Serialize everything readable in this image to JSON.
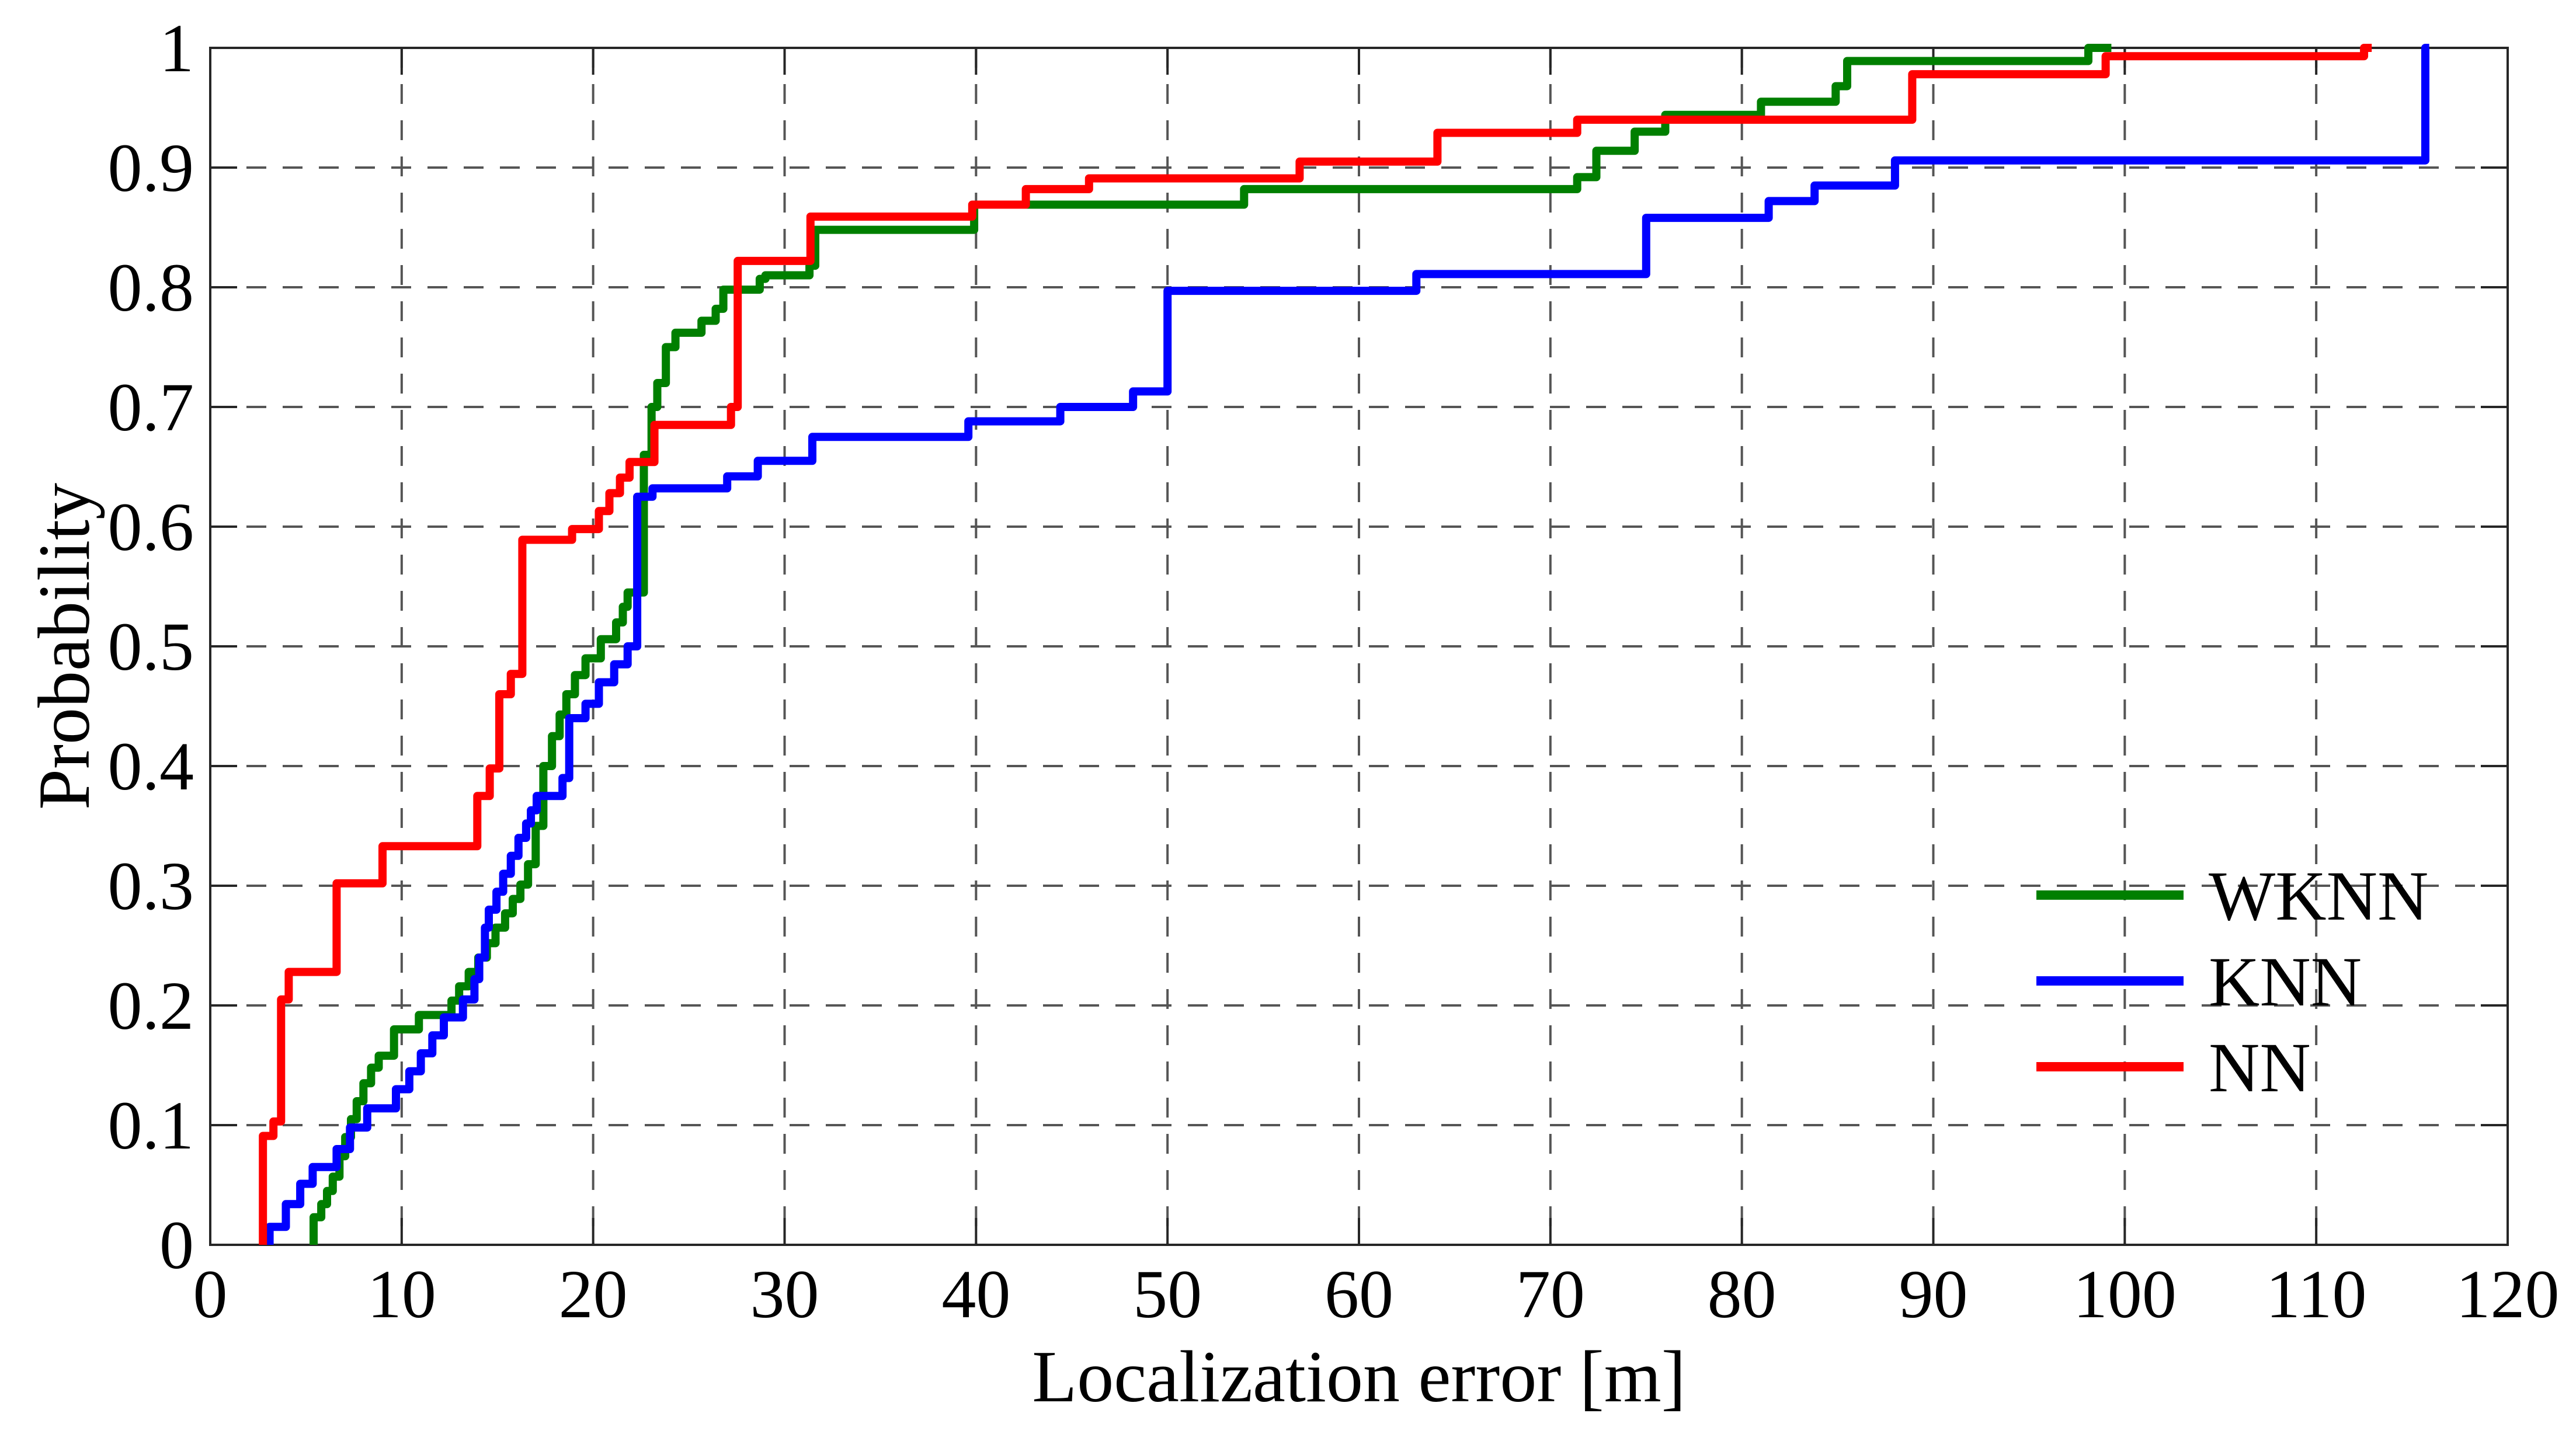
{
  "chart_data": {
    "type": "line",
    "subtype": "empirical-cdf-step",
    "title": "",
    "xlabel": "Localization error [m]",
    "ylabel": "Probability",
    "xlim": [
      0,
      120
    ],
    "ylim": [
      0,
      1
    ],
    "xticks": [
      0,
      10,
      20,
      30,
      40,
      50,
      60,
      70,
      80,
      90,
      100,
      110,
      120
    ],
    "xtick_labels": [
      "0",
      "10",
      "20",
      "30",
      "40",
      "50",
      "60",
      "70",
      "80",
      "90",
      "100",
      "110",
      "120"
    ],
    "yticks": [
      0,
      0.1,
      0.2,
      0.3,
      0.4,
      0.5,
      0.6,
      0.7,
      0.8,
      0.9,
      1
    ],
    "ytick_labels": [
      "0",
      "0.1",
      "0.2",
      "0.3",
      "0.4",
      "0.5",
      "0.6",
      "0.7",
      "0.8",
      "0.9",
      "1"
    ],
    "grid": "dashed",
    "grid_color": "#555555",
    "frame_color": "#262626",
    "background": "#ffffff",
    "legend_position": "right-lower-inside",
    "legend_frame": false,
    "series": [
      {
        "name": "WKNN",
        "color": "#007f00",
        "start_probability": 0,
        "points": [
          [
            5.4,
            0.023
          ],
          [
            5.8,
            0.034
          ],
          [
            6.1,
            0.045
          ],
          [
            6.4,
            0.057
          ],
          [
            6.75,
            0.074
          ],
          [
            7.05,
            0.09
          ],
          [
            7.35,
            0.105
          ],
          [
            7.65,
            0.12
          ],
          [
            8.0,
            0.135
          ],
          [
            8.4,
            0.148
          ],
          [
            8.8,
            0.158
          ],
          [
            9.6,
            0.18
          ],
          [
            10.9,
            0.192
          ],
          [
            12.6,
            0.204
          ],
          [
            13.0,
            0.216
          ],
          [
            13.5,
            0.228
          ],
          [
            14.0,
            0.24
          ],
          [
            14.45,
            0.252
          ],
          [
            14.9,
            0.265
          ],
          [
            15.4,
            0.277
          ],
          [
            15.8,
            0.289
          ],
          [
            16.2,
            0.301
          ],
          [
            16.6,
            0.318
          ],
          [
            17.0,
            0.35
          ],
          [
            17.4,
            0.4
          ],
          [
            17.85,
            0.425
          ],
          [
            18.25,
            0.443
          ],
          [
            18.6,
            0.46
          ],
          [
            19.05,
            0.476
          ],
          [
            19.6,
            0.49
          ],
          [
            20.4,
            0.506
          ],
          [
            21.2,
            0.52
          ],
          [
            21.55,
            0.533
          ],
          [
            21.8,
            0.545
          ],
          [
            22.65,
            0.66
          ],
          [
            23.05,
            0.7
          ],
          [
            23.35,
            0.72
          ],
          [
            23.8,
            0.75
          ],
          [
            24.3,
            0.762
          ],
          [
            25.66,
            0.772
          ],
          [
            26.4,
            0.782
          ],
          [
            26.8,
            0.798
          ],
          [
            28.7,
            0.807
          ],
          [
            29.0,
            0.81
          ],
          [
            31.3,
            0.818
          ],
          [
            31.6,
            0.848
          ],
          [
            39.9,
            0.869
          ],
          [
            54.0,
            0.882
          ],
          [
            71.4,
            0.892
          ],
          [
            72.4,
            0.914
          ],
          [
            74.4,
            0.93
          ],
          [
            76.0,
            0.944
          ],
          [
            81.0,
            0.955
          ],
          [
            84.9,
            0.968
          ],
          [
            85.5,
            0.989
          ],
          [
            98.1,
            1.0
          ]
        ],
        "end_x": 99.3
      },
      {
        "name": "KNN",
        "color": "#0000ff",
        "start_probability": 0,
        "points": [
          [
            3.1,
            0.015
          ],
          [
            3.95,
            0.034
          ],
          [
            4.7,
            0.051
          ],
          [
            5.35,
            0.065
          ],
          [
            6.6,
            0.08
          ],
          [
            7.3,
            0.098
          ],
          [
            8.2,
            0.114
          ],
          [
            9.7,
            0.13
          ],
          [
            10.4,
            0.145
          ],
          [
            11.0,
            0.16
          ],
          [
            11.6,
            0.175
          ],
          [
            12.2,
            0.19
          ],
          [
            13.2,
            0.205
          ],
          [
            13.8,
            0.222
          ],
          [
            14.05,
            0.24
          ],
          [
            14.35,
            0.265
          ],
          [
            14.55,
            0.28
          ],
          [
            14.95,
            0.295
          ],
          [
            15.3,
            0.31
          ],
          [
            15.7,
            0.325
          ],
          [
            16.1,
            0.34
          ],
          [
            16.5,
            0.352
          ],
          [
            16.75,
            0.363
          ],
          [
            17.05,
            0.375
          ],
          [
            18.4,
            0.39
          ],
          [
            18.75,
            0.44
          ],
          [
            19.6,
            0.452
          ],
          [
            20.3,
            0.47
          ],
          [
            21.1,
            0.485
          ],
          [
            21.8,
            0.5
          ],
          [
            22.3,
            0.625
          ],
          [
            23.1,
            0.632
          ],
          [
            27.0,
            0.642
          ],
          [
            28.6,
            0.655
          ],
          [
            31.45,
            0.675
          ],
          [
            39.6,
            0.688
          ],
          [
            44.4,
            0.7
          ],
          [
            48.2,
            0.713
          ],
          [
            50.0,
            0.797
          ],
          [
            63.0,
            0.811
          ],
          [
            75.0,
            0.858
          ],
          [
            81.4,
            0.872
          ],
          [
            83.8,
            0.885
          ],
          [
            88.0,
            0.906
          ],
          [
            115.7,
            1.0
          ]
        ],
        "end_x": 115.9
      },
      {
        "name": "NN",
        "color": "#ff0000",
        "start_probability": 0,
        "points": [
          [
            2.75,
            0.091
          ],
          [
            3.3,
            0.103
          ],
          [
            3.7,
            0.205
          ],
          [
            4.1,
            0.228
          ],
          [
            6.6,
            0.302
          ],
          [
            9.0,
            0.333
          ],
          [
            13.95,
            0.375
          ],
          [
            14.6,
            0.398
          ],
          [
            15.1,
            0.46
          ],
          [
            15.7,
            0.477
          ],
          [
            16.3,
            0.589
          ],
          [
            18.9,
            0.598
          ],
          [
            20.3,
            0.613
          ],
          [
            20.85,
            0.628
          ],
          [
            21.4,
            0.641
          ],
          [
            21.9,
            0.654
          ],
          [
            23.2,
            0.685
          ],
          [
            27.2,
            0.7
          ],
          [
            27.55,
            0.822
          ],
          [
            31.35,
            0.859
          ],
          [
            39.8,
            0.869
          ],
          [
            42.6,
            0.882
          ],
          [
            45.9,
            0.891
          ],
          [
            56.9,
            0.905
          ],
          [
            64.1,
            0.929
          ],
          [
            71.4,
            0.94
          ],
          [
            88.9,
            0.978
          ],
          [
            99.0,
            0.993
          ],
          [
            112.5,
            1.0
          ]
        ],
        "end_x": 112.9
      }
    ],
    "legend": [
      {
        "label": "WKNN",
        "color": "#007f00"
      },
      {
        "label": "KNN",
        "color": "#0000ff"
      },
      {
        "label": "NN",
        "color": "#ff0000"
      }
    ]
  }
}
